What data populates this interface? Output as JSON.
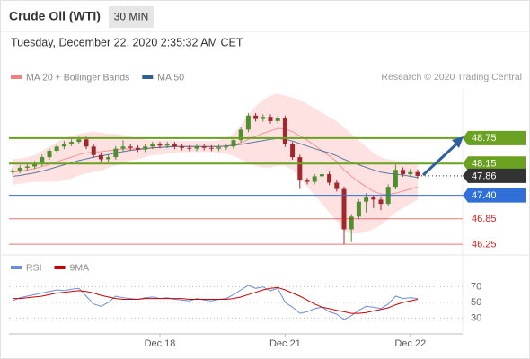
{
  "chart_data": {
    "type": "candlestick",
    "title": "Crude Oil (WTI)",
    "timeframe": "30 MIN",
    "subtitle": "Tuesday, December 22, 2020 2:35:32 AM CET",
    "source": "Research © 2020 Trading Central",
    "categories": [
      null,
      null,
      null,
      null,
      null,
      null,
      null,
      null,
      null,
      null,
      null,
      null,
      null,
      null,
      null,
      null,
      null,
      null,
      null,
      null,
      "Dec 18",
      null,
      null,
      null,
      null,
      null,
      null,
      null,
      null,
      null,
      null,
      null,
      null,
      null,
      null,
      null,
      null,
      "Dec 21",
      null,
      null,
      null,
      null,
      null,
      null,
      null,
      null,
      null,
      null,
      null,
      null,
      null,
      null,
      null,
      null,
      "Dec 22",
      null
    ],
    "open": [
      47.95,
      47.98,
      48.05,
      48.08,
      48.15,
      48.3,
      48.45,
      48.55,
      48.62,
      48.66,
      48.72,
      48.55,
      48.35,
      48.25,
      48.3,
      48.5,
      48.55,
      48.52,
      48.48,
      48.55,
      48.6,
      48.57,
      48.6,
      48.55,
      48.52,
      48.5,
      48.55,
      48.52,
      48.5,
      48.53,
      48.55,
      48.7,
      48.95,
      49.28,
      49.2,
      49.25,
      49.15,
      49.22,
      48.6,
      48.3,
      47.75,
      47.72,
      47.85,
      47.9,
      47.7,
      47.55,
      46.6,
      46.9,
      47.25,
      47.35,
      47.3,
      47.2,
      47.6,
      48.0,
      47.9,
      47.95
    ],
    "high": [
      48.04,
      48.11,
      48.14,
      48.21,
      48.36,
      48.51,
      48.61,
      48.68,
      48.72,
      48.78,
      48.78,
      48.61,
      48.41,
      48.36,
      48.56,
      48.7,
      48.61,
      48.58,
      48.61,
      48.66,
      48.66,
      48.66,
      48.66,
      48.61,
      48.58,
      48.61,
      48.61,
      48.58,
      48.59,
      48.61,
      48.76,
      49.01,
      49.34,
      49.34,
      49.31,
      49.31,
      49.28,
      49.28,
      48.66,
      48.36,
      47.81,
      47.91,
      47.96,
      47.96,
      47.76,
      47.61,
      46.96,
      47.31,
      47.45,
      47.41,
      47.36,
      47.66,
      48.12,
      48.06,
      48.03,
      48.01
    ],
    "low": [
      47.89,
      47.92,
      47.99,
      48.02,
      48.09,
      48.24,
      48.39,
      48.49,
      48.56,
      48.6,
      48.49,
      48.29,
      48.19,
      48.19,
      48.24,
      48.44,
      48.46,
      48.42,
      48.42,
      48.49,
      48.51,
      48.51,
      48.49,
      48.46,
      48.44,
      48.44,
      48.46,
      48.44,
      48.44,
      48.47,
      48.49,
      48.64,
      48.89,
      49.14,
      49.14,
      49.09,
      49.09,
      48.54,
      48.24,
      47.55,
      47.66,
      47.66,
      47.79,
      47.64,
      47.49,
      46.25,
      46.3,
      46.84,
      47.0,
      47.1,
      47.05,
      47.14,
      47.54,
      47.84,
      47.84,
      47.8
    ],
    "close": [
      47.98,
      48.05,
      48.08,
      48.15,
      48.3,
      48.45,
      48.55,
      48.62,
      48.66,
      48.72,
      48.55,
      48.35,
      48.25,
      48.3,
      48.5,
      48.55,
      48.52,
      48.48,
      48.55,
      48.6,
      48.57,
      48.6,
      48.55,
      48.52,
      48.5,
      48.55,
      48.52,
      48.5,
      48.53,
      48.55,
      48.7,
      48.95,
      49.28,
      49.2,
      49.25,
      49.15,
      49.22,
      48.6,
      48.3,
      47.75,
      47.72,
      47.85,
      47.9,
      47.7,
      47.55,
      46.6,
      46.9,
      47.25,
      47.35,
      47.3,
      47.2,
      47.6,
      48.0,
      47.9,
      47.95,
      47.86
    ],
    "up_color": "#4f8f2f",
    "down_color": "#a0282d",
    "ylim": [
      46.04,
      50.1
    ],
    "series": [
      {
        "name": "MA 20 + Bollinger Bands",
        "color": "#f08080",
        "band_color": "#fdd8d8",
        "values": [
          47.95,
          47.97,
          48.0,
          48.03,
          48.08,
          48.13,
          48.19,
          48.25,
          48.3,
          48.36,
          48.4,
          48.42,
          48.43,
          48.45,
          48.47,
          48.49,
          48.5,
          48.5,
          48.51,
          48.52,
          48.53,
          48.54,
          48.55,
          48.55,
          48.55,
          48.55,
          48.55,
          48.55,
          48.55,
          48.56,
          48.59,
          48.64,
          48.72,
          48.79,
          48.86,
          48.92,
          48.98,
          48.96,
          48.9,
          48.8,
          48.7,
          48.58,
          48.45,
          48.33,
          48.2,
          48.0,
          47.85,
          47.72,
          47.6,
          47.5,
          47.43,
          47.42,
          47.45,
          47.5,
          47.55,
          47.6
        ],
        "upper": [
          48.25,
          48.27,
          48.3,
          48.35,
          48.45,
          48.55,
          48.65,
          48.75,
          48.8,
          48.85,
          48.88,
          48.9,
          48.88,
          48.85,
          48.85,
          48.82,
          48.78,
          48.75,
          48.72,
          48.7,
          48.7,
          48.7,
          48.7,
          48.68,
          48.68,
          48.68,
          48.68,
          48.68,
          48.7,
          48.75,
          48.85,
          49.05,
          49.3,
          49.5,
          49.65,
          49.75,
          49.8,
          49.75,
          49.7,
          49.65,
          49.55,
          49.45,
          49.35,
          49.25,
          49.15,
          49.0,
          48.85,
          48.7,
          48.55,
          48.4,
          48.3,
          48.25,
          48.22,
          48.2,
          48.18,
          48.15
        ],
        "lower": [
          47.65,
          47.67,
          47.7,
          47.72,
          47.72,
          47.72,
          47.73,
          47.75,
          47.8,
          47.87,
          47.92,
          47.95,
          47.98,
          48.05,
          48.1,
          48.15,
          48.22,
          48.25,
          48.3,
          48.35,
          48.36,
          48.38,
          48.4,
          48.42,
          48.42,
          48.42,
          48.42,
          48.42,
          48.4,
          48.37,
          48.33,
          48.25,
          48.15,
          48.1,
          48.05,
          48.05,
          48.1,
          48.1,
          48.0,
          47.8,
          47.6,
          47.4,
          47.2,
          47.0,
          46.8,
          46.55,
          46.5,
          46.5,
          46.55,
          46.6,
          46.7,
          46.85,
          47.0,
          47.1,
          47.2,
          47.3
        ]
      },
      {
        "name": "MA 50",
        "color": "#2e5f8f",
        "values": [
          47.85,
          47.87,
          47.9,
          47.93,
          47.97,
          48.02,
          48.07,
          48.12,
          48.17,
          48.22,
          48.26,
          48.3,
          48.33,
          48.36,
          48.4,
          48.43,
          48.46,
          48.48,
          48.5,
          48.52,
          48.53,
          48.54,
          48.55,
          48.55,
          48.55,
          48.55,
          48.55,
          48.55,
          48.55,
          48.56,
          48.58,
          48.6,
          48.63,
          48.66,
          48.69,
          48.72,
          48.74,
          48.72,
          48.68,
          48.62,
          48.56,
          48.5,
          48.45,
          48.4,
          48.33,
          48.25,
          48.18,
          48.12,
          48.06,
          48.0,
          47.95,
          47.92,
          47.9,
          47.88,
          47.85,
          47.82
        ]
      }
    ],
    "levels": [
      {
        "value": 48.75,
        "color": "#6aa121",
        "box": true,
        "line": "thick"
      },
      {
        "value": 48.15,
        "color": "#6aa121",
        "box": true,
        "line": "thick"
      },
      {
        "value": 47.86,
        "color": "#333333",
        "box": true,
        "line": "dotted"
      },
      {
        "value": 47.4,
        "label": "47.40",
        "color": "#2f6fd6",
        "box": true,
        "line": "thin"
      },
      {
        "value": 46.85,
        "color": "#d02020",
        "box": false,
        "line": "thin"
      },
      {
        "value": 46.25,
        "color": "#d02020",
        "box": false,
        "line": "thin"
      }
    ],
    "rsi": {
      "ylim": [
        12,
        104
      ],
      "yticks": [
        30,
        50,
        70
      ],
      "series": [
        {
          "name": "RSI",
          "color": "#6a8fd8",
          "values": [
            52,
            56,
            58,
            60,
            62,
            64,
            66,
            65,
            67,
            68,
            58,
            48,
            45,
            50,
            58,
            56,
            55,
            54,
            56,
            57,
            55,
            56,
            54,
            53,
            52,
            55,
            53,
            52,
            54,
            55,
            60,
            66,
            72,
            68,
            70,
            65,
            68,
            50,
            44,
            36,
            38,
            42,
            44,
            38,
            35,
            28,
            33,
            40,
            45,
            44,
            42,
            48,
            58,
            55,
            56,
            55
          ]
        },
        {
          "name": "9MA",
          "color": "#cc0000",
          "values": [
            55,
            55,
            56,
            57,
            58,
            60,
            62,
            63,
            64,
            65,
            64,
            62,
            59,
            57,
            55,
            54,
            54,
            54,
            55,
            55,
            55,
            55,
            55,
            55,
            54,
            54,
            54,
            54,
            54,
            54,
            55,
            57,
            60,
            63,
            66,
            68,
            69,
            66,
            62,
            58,
            53,
            48,
            44,
            42,
            40,
            38,
            36,
            36,
            37,
            39,
            41,
            43,
            47,
            50,
            52,
            54
          ]
        }
      ]
    }
  }
}
